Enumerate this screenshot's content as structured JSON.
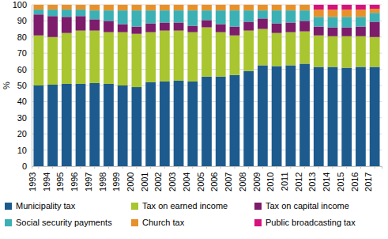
{
  "chart_data": {
    "type": "bar",
    "stacked": true,
    "grid": true,
    "legend": "bottom",
    "y_label": "%",
    "categories": [
      "1993",
      "1994",
      "1995",
      "1996",
      "1997",
      "1998",
      "1999",
      "2000",
      "2001",
      "2002",
      "2003",
      "2004",
      "2005",
      "2006",
      "2007",
      "2008",
      "2009",
      "2010",
      "2011",
      "2012",
      "2013",
      "2014",
      "2015",
      "2016",
      "2017"
    ],
    "ylim": [
      0,
      100
    ],
    "yticks": [
      0,
      10,
      20,
      30,
      40,
      50,
      60,
      70,
      80,
      90,
      100
    ],
    "series": [
      {
        "name": "Municipality tax",
        "color": "#1d5b8e",
        "values": [
          50,
          50.5,
          51,
          51,
          51.5,
          51,
          50,
          49,
          52,
          52.5,
          53,
          52.5,
          55.5,
          55.5,
          56.5,
          59,
          62.5,
          62,
          62.5,
          63.5,
          61.5,
          61.5,
          61,
          61.5,
          61.5
        ]
      },
      {
        "name": "Tax on earned income",
        "color": "#a9c52f",
        "values": [
          31,
          29.5,
          31.5,
          33,
          32.5,
          32,
          33,
          33,
          31,
          31.5,
          31,
          30.5,
          30.5,
          27.5,
          24.5,
          25,
          22.5,
          20.5,
          20.5,
          20,
          19.5,
          19,
          19.5,
          19,
          18.5
        ]
      },
      {
        "name": "Tax on capital income",
        "color": "#7c1c6b",
        "values": [
          13,
          13,
          10,
          9,
          7,
          7,
          5,
          4.5,
          5.5,
          5,
          5,
          4,
          4.5,
          5,
          5.5,
          5.5,
          6.5,
          6,
          6,
          6.5,
          5.5,
          5.5,
          5.5,
          6,
          9.5
        ]
      },
      {
        "name": "Social security payments",
        "color": "#3bb1b5",
        "values": [
          3,
          4,
          4.5,
          4,
          5.5,
          6.5,
          8.5,
          10,
          8,
          7.5,
          7.5,
          9.5,
          6,
          8.5,
          10,
          7,
          5,
          8,
          7.5,
          6.5,
          6,
          6.5,
          6.5,
          6,
          5.5
        ]
      },
      {
        "name": "Church tax",
        "color": "#e8912b",
        "values": [
          3,
          3,
          3,
          3,
          3.5,
          3.5,
          3.5,
          3.5,
          3.5,
          3.5,
          3.5,
          3.5,
          3.5,
          3.5,
          3.5,
          3.5,
          3.5,
          3.5,
          3.5,
          3.5,
          4.5,
          4.5,
          4.5,
          4.5,
          2.5
        ]
      },
      {
        "name": "Public broadcasting tax",
        "color": "#d6127f",
        "values": [
          null,
          null,
          null,
          null,
          null,
          null,
          null,
          null,
          null,
          null,
          null,
          null,
          null,
          null,
          null,
          null,
          null,
          null,
          null,
          null,
          3,
          3,
          3,
          3,
          2.5
        ]
      }
    ]
  }
}
